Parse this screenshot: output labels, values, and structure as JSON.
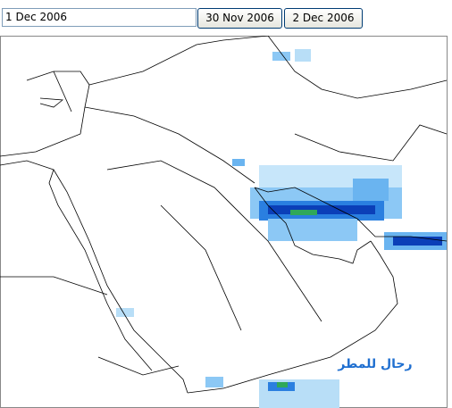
{
  "toolbar": {
    "date_input": "1 Dec 2006",
    "prev_button": "30 Nov 2006",
    "next_button": "2 Dec 2006"
  },
  "map": {
    "watermark": "رحال للمطر"
  }
}
